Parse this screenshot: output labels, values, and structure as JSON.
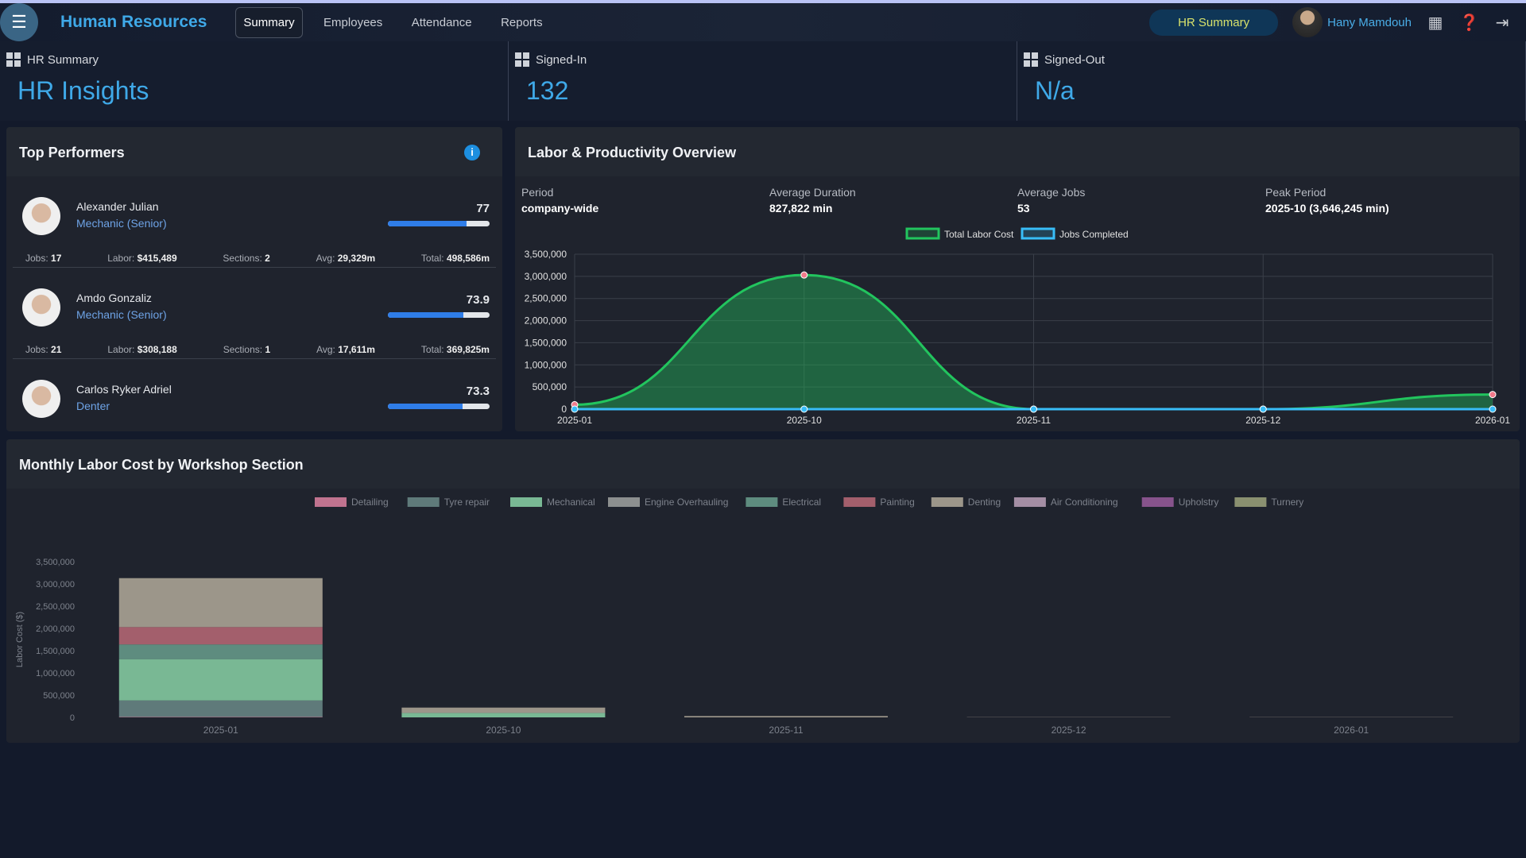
{
  "header": {
    "title": "Human Resources",
    "tabs": [
      "Summary",
      "Employees",
      "Attendance",
      "Reports"
    ],
    "active_tab": "Summary",
    "pill": "HR Summary",
    "user": "Hany Mamdouh"
  },
  "cards": [
    {
      "label": "HR Summary",
      "value": "HR Insights"
    },
    {
      "label": "Signed-In",
      "value": "132"
    },
    {
      "label": "Signed-Out",
      "value": "N/a"
    }
  ],
  "top_performers": {
    "title": "Top Performers",
    "items": [
      {
        "name": "Alexander Julian",
        "role": "Mechanic (Senior)",
        "score": "77",
        "score_pct": 77,
        "jobs": "17",
        "labor": "$415,489",
        "sections": "2",
        "avg": "29,329m",
        "total": "498,586m"
      },
      {
        "name": "Amdo Gonzaliz",
        "role": "Mechanic (Senior)",
        "score": "73.9",
        "score_pct": 73.9,
        "jobs": "21",
        "labor": "$308,188",
        "sections": "1",
        "avg": "17,611m",
        "total": "369,825m"
      },
      {
        "name": "Carlos Ryker Adriel",
        "role": "Denter",
        "score": "73.3",
        "score_pct": 73.3
      }
    ],
    "stat_labels": {
      "jobs": "Jobs:",
      "labor": "Labor:",
      "sections": "Sections:",
      "avg": "Avg:",
      "total": "Total:"
    }
  },
  "labor": {
    "title": "Labor & Productivity Overview",
    "kpis": [
      {
        "label": "Period",
        "value": "company-wide"
      },
      {
        "label": "Average Duration",
        "value": "827,822 min"
      },
      {
        "label": "Average Jobs",
        "value": "53"
      },
      {
        "label": "Peak Period",
        "value": "2025-10 (3,646,245 min)"
      }
    ]
  },
  "chart_data": [
    {
      "type": "area",
      "categories": [
        "2025-01",
        "2025-10",
        "2025-11",
        "2025-12",
        "2026-01"
      ],
      "ylim": [
        0,
        3500000
      ],
      "yticks": [
        0,
        500000,
        1000000,
        1500000,
        2000000,
        2500000,
        3000000,
        3500000
      ],
      "grid": true,
      "legend": "top",
      "series": [
        {
          "name": "Total Labor Cost",
          "values": [
            100000,
            3030000,
            0,
            0,
            330000
          ],
          "color": "#22c55e"
        },
        {
          "name": "Jobs Completed",
          "values": [
            17,
            21,
            5,
            3,
            7
          ],
          "color": "#38bdf8"
        }
      ]
    },
    {
      "type": "bar",
      "stacked": true,
      "title": "Monthly Labor Cost by Workshop Section",
      "ylabel": "Labor Cost ($)",
      "categories": [
        "2025-01",
        "2025-10",
        "2025-11",
        "2025-12",
        "2026-01"
      ],
      "ylim": [
        0,
        3500000
      ],
      "yticks": [
        0,
        500000,
        1000000,
        1500000,
        2000000,
        2500000,
        3000000,
        3500000
      ],
      "legend": "top",
      "series": [
        {
          "name": "Detailing",
          "color": "#c0738f",
          "values": [
            10000,
            0,
            0,
            0,
            0
          ]
        },
        {
          "name": "Tyre repair",
          "color": "#5f7a7a",
          "values": [
            370000,
            0,
            0,
            0,
            0
          ]
        },
        {
          "name": "Mechanical",
          "color": "#79b894",
          "values": [
            930000,
            100000,
            0,
            0,
            0
          ]
        },
        {
          "name": "Engine Overhauling",
          "color": "#8c8f8f",
          "values": [
            0,
            0,
            0,
            0,
            0
          ]
        },
        {
          "name": "Electrical",
          "color": "#5e8c7f",
          "values": [
            330000,
            0,
            0,
            0,
            0
          ]
        },
        {
          "name": "Painting",
          "color": "#a35f6c",
          "values": [
            390000,
            0,
            0,
            0,
            0
          ]
        },
        {
          "name": "Denting",
          "color": "#9c968a",
          "values": [
            1100000,
            120000,
            30000,
            5000,
            5000
          ]
        },
        {
          "name": "Air Conditioning",
          "color": "#a48ea4",
          "values": [
            0,
            0,
            0,
            0,
            0
          ]
        },
        {
          "name": "Upholstry",
          "color": "#87538c",
          "values": [
            0,
            0,
            0,
            0,
            0
          ]
        },
        {
          "name": "Turnery",
          "color": "#8a9070",
          "values": [
            0,
            0,
            0,
            0,
            0
          ]
        }
      ]
    }
  ]
}
